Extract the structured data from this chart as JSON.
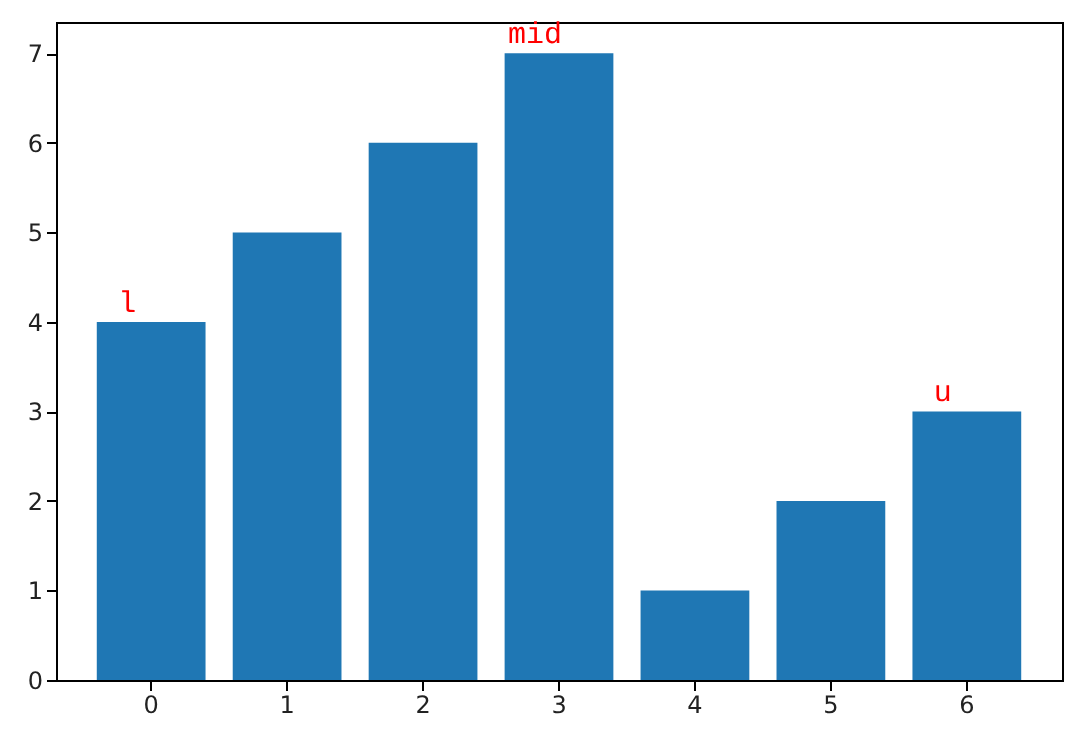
{
  "chart_data": {
    "type": "bar",
    "categories": [
      "0",
      "1",
      "2",
      "3",
      "4",
      "5",
      "6"
    ],
    "values": [
      4,
      5,
      6,
      7,
      1,
      2,
      3
    ],
    "color": "#1f77b4",
    "ylim": [
      0,
      7.35
    ],
    "yticks": [
      0,
      1,
      2,
      3,
      4,
      5,
      6,
      7
    ],
    "grid": false,
    "annotations": [
      {
        "text": "l",
        "x": "0",
        "y": 4
      },
      {
        "text": "mid",
        "x": "3",
        "y": 7
      },
      {
        "text": "u",
        "x": "6",
        "y": 3
      }
    ]
  }
}
